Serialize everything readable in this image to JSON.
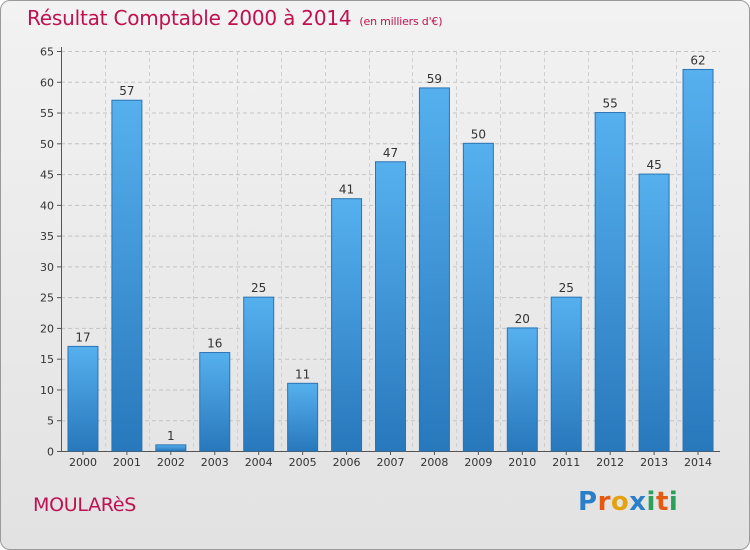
{
  "title": "Résultat Comptable 2000 à 2014",
  "unit": "(en milliers d'€)",
  "commune": "MOULARèS",
  "brand": {
    "letters": [
      "P",
      "r",
      "o",
      "x",
      "i",
      "t",
      "i"
    ],
    "colors": [
      "#2a7fc8",
      "#e45b10",
      "#e4a210",
      "#2a7fc8",
      "#2aa05a",
      "#e45b10",
      "#2aa05a"
    ]
  },
  "chart_data": {
    "type": "bar",
    "categories": [
      "2000",
      "2001",
      "2002",
      "2003",
      "2004",
      "2005",
      "2006",
      "2007",
      "2008",
      "2009",
      "2010",
      "2011",
      "2012",
      "2013",
      "2014"
    ],
    "values": [
      17,
      57,
      1,
      16,
      25,
      11,
      41,
      47,
      59,
      50,
      20,
      25,
      55,
      45,
      62
    ],
    "ylim": [
      0,
      65
    ],
    "yticks": [
      0,
      5,
      10,
      15,
      20,
      25,
      30,
      35,
      40,
      45,
      50,
      55,
      60,
      65
    ],
    "grid": true,
    "bar_color": "#3c95dc"
  }
}
